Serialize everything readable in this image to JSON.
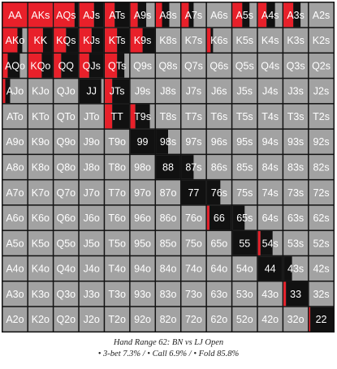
{
  "caption": {
    "title": "Hand Range 62: BN vs LJ Open",
    "stats": "• 3-bet 7.3% / • Call 6.9% / • Fold 85.8%"
  },
  "colors": {
    "three_bet": "#e8202a",
    "call": "#111111",
    "fold": "#a2a2a2",
    "text": "#ffffff"
  },
  "chart_data": {
    "type": "heatmap",
    "title": "Hand Range 62: BN vs LJ Open",
    "legend": [
      "3-bet 7.3%",
      "Call 6.9%",
      "Fold 85.8%"
    ],
    "summary": {
      "three_bet_pct": 7.3,
      "call_pct": 6.9,
      "fold_pct": 85.8
    },
    "ranks": [
      "A",
      "K",
      "Q",
      "J",
      "T",
      "9",
      "8",
      "7",
      "6",
      "5",
      "4",
      "3",
      "2"
    ],
    "labels": [
      [
        "AA",
        "AKs",
        "AQs",
        "AJs",
        "ATs",
        "A9s",
        "A8s",
        "A7s",
        "A6s",
        "A5s",
        "A4s",
        "A3s",
        "A2s"
      ],
      [
        "AKo",
        "KK",
        "KQs",
        "KJs",
        "KTs",
        "K9s",
        "K8s",
        "K7s",
        "K6s",
        "K5s",
        "K4s",
        "K3s",
        "K2s"
      ],
      [
        "AQo",
        "KQo",
        "QQ",
        "QJs",
        "QTs",
        "Q9s",
        "Q8s",
        "Q7s",
        "Q6s",
        "Q5s",
        "Q4s",
        "Q3s",
        "Q2s"
      ],
      [
        "AJo",
        "KJo",
        "QJo",
        "JJ",
        "JTs",
        "J9s",
        "J8s",
        "J7s",
        "J6s",
        "J5s",
        "J4s",
        "J3s",
        "J2s"
      ],
      [
        "ATo",
        "KTo",
        "QTo",
        "JTo",
        "TT",
        "T9s",
        "T8s",
        "T7s",
        "T6s",
        "T5s",
        "T4s",
        "T3s",
        "T2s"
      ],
      [
        "A9o",
        "K9o",
        "Q9o",
        "J9o",
        "T9o",
        "99",
        "98s",
        "97s",
        "96s",
        "95s",
        "94s",
        "93s",
        "92s"
      ],
      [
        "A8o",
        "K8o",
        "Q8o",
        "J8o",
        "T8o",
        "98o",
        "88",
        "87s",
        "86s",
        "85s",
        "84s",
        "83s",
        "82s"
      ],
      [
        "A7o",
        "K7o",
        "Q7o",
        "J7o",
        "T7o",
        "97o",
        "87o",
        "77",
        "76s",
        "75s",
        "74s",
        "73s",
        "72s"
      ],
      [
        "A6o",
        "K6o",
        "Q6o",
        "J6o",
        "T6o",
        "96o",
        "86o",
        "76o",
        "66",
        "65s",
        "64s",
        "63s",
        "62s"
      ],
      [
        "A5o",
        "K5o",
        "Q5o",
        "J5o",
        "T5o",
        "95o",
        "85o",
        "75o",
        "65o",
        "55",
        "54s",
        "53s",
        "52s"
      ],
      [
        "A4o",
        "K4o",
        "Q4o",
        "J4o",
        "T4o",
        "94o",
        "84o",
        "74o",
        "64o",
        "54o",
        "44",
        "43s",
        "42s"
      ],
      [
        "A3o",
        "K3o",
        "Q3o",
        "J3o",
        "T3o",
        "93o",
        "83o",
        "73o",
        "63o",
        "53o",
        "43o",
        "33",
        "32s"
      ],
      [
        "A2o",
        "K2o",
        "Q2o",
        "J2o",
        "T2o",
        "92o",
        "82o",
        "72o",
        "62o",
        "52o",
        "42o",
        "32o",
        "22"
      ]
    ],
    "frequencies": [
      [
        [
          1.0,
          0.0
        ],
        [
          1.0,
          0.0
        ],
        [
          0.85,
          0.15
        ],
        [
          0.6,
          0.4
        ],
        [
          0.4,
          0.6
        ],
        [
          0.3,
          0.35
        ],
        [
          0.25,
          0.3
        ],
        [
          0.3,
          0.2
        ],
        [
          0.0,
          0.0
        ],
        [
          0.4,
          0.3
        ],
        [
          0.35,
          0.35
        ],
        [
          0.4,
          0.3
        ],
        [
          0.0,
          0.0
        ]
      ],
      [
        [
          0.6,
          0.2
        ],
        [
          0.6,
          0.4
        ],
        [
          0.5,
          0.5
        ],
        [
          0.5,
          0.5
        ],
        [
          0.5,
          0.5
        ],
        [
          0.5,
          0.5
        ],
        [
          0.0,
          0.0
        ],
        [
          0.0,
          0.0
        ],
        [
          0.15,
          0.1
        ],
        [
          0.0,
          0.0
        ],
        [
          0.0,
          0.0
        ],
        [
          0.0,
          0.0
        ],
        [
          0.0,
          0.0
        ]
      ],
      [
        [
          0.2,
          0.5
        ],
        [
          0.55,
          0.45
        ],
        [
          0.3,
          0.7
        ],
        [
          0.4,
          0.6
        ],
        [
          0.5,
          0.3
        ],
        [
          0.0,
          0.0
        ],
        [
          0.0,
          0.0
        ],
        [
          0.0,
          0.0
        ],
        [
          0.0,
          0.0
        ],
        [
          0.0,
          0.0
        ],
        [
          0.0,
          0.0
        ],
        [
          0.0,
          0.0
        ],
        [
          0.0,
          0.0
        ]
      ],
      [
        [
          0.1,
          0.2
        ],
        [
          0.0,
          0.0
        ],
        [
          0.0,
          0.0
        ],
        [
          0.0,
          0.9
        ],
        [
          0.3,
          0.7
        ],
        [
          0.0,
          0.0
        ],
        [
          0.0,
          0.0
        ],
        [
          0.0,
          0.0
        ],
        [
          0.0,
          0.0
        ],
        [
          0.0,
          0.0
        ],
        [
          0.0,
          0.0
        ],
        [
          0.0,
          0.0
        ],
        [
          0.0,
          0.0
        ]
      ],
      [
        [
          0.0,
          0.0
        ],
        [
          0.0,
          0.0
        ],
        [
          0.0,
          0.0
        ],
        [
          0.0,
          0.0
        ],
        [
          0.3,
          0.7
        ],
        [
          0.2,
          0.6
        ],
        [
          0.0,
          0.0
        ],
        [
          0.0,
          0.0
        ],
        [
          0.0,
          0.0
        ],
        [
          0.0,
          0.0
        ],
        [
          0.0,
          0.0
        ],
        [
          0.0,
          0.0
        ],
        [
          0.0,
          0.0
        ]
      ],
      [
        [
          0.0,
          0.0
        ],
        [
          0.0,
          0.0
        ],
        [
          0.0,
          0.0
        ],
        [
          0.0,
          0.0
        ],
        [
          0.0,
          0.0
        ],
        [
          0.0,
          1.0
        ],
        [
          0.0,
          0.5
        ],
        [
          0.0,
          0.0
        ],
        [
          0.0,
          0.0
        ],
        [
          0.0,
          0.0
        ],
        [
          0.0,
          0.0
        ],
        [
          0.0,
          0.0
        ],
        [
          0.0,
          0.0
        ]
      ],
      [
        [
          0.0,
          0.0
        ],
        [
          0.0,
          0.0
        ],
        [
          0.0,
          0.0
        ],
        [
          0.0,
          0.0
        ],
        [
          0.0,
          0.0
        ],
        [
          0.0,
          0.0
        ],
        [
          0.0,
          1.0
        ],
        [
          0.0,
          0.5
        ],
        [
          0.0,
          0.0
        ],
        [
          0.0,
          0.0
        ],
        [
          0.0,
          0.0
        ],
        [
          0.0,
          0.0
        ],
        [
          0.0,
          0.0
        ]
      ],
      [
        [
          0.0,
          0.0
        ],
        [
          0.0,
          0.0
        ],
        [
          0.0,
          0.0
        ],
        [
          0.0,
          0.0
        ],
        [
          0.0,
          0.0
        ],
        [
          0.0,
          0.0
        ],
        [
          0.0,
          0.0
        ],
        [
          0.0,
          1.0
        ],
        [
          0.0,
          0.55
        ],
        [
          0.0,
          0.0
        ],
        [
          0.0,
          0.0
        ],
        [
          0.0,
          0.0
        ],
        [
          0.0,
          0.0
        ]
      ],
      [
        [
          0.0,
          0.0
        ],
        [
          0.0,
          0.0
        ],
        [
          0.0,
          0.0
        ],
        [
          0.0,
          0.0
        ],
        [
          0.0,
          0.0
        ],
        [
          0.0,
          0.0
        ],
        [
          0.0,
          0.0
        ],
        [
          0.0,
          0.0
        ],
        [
          0.1,
          0.9
        ],
        [
          0.0,
          0.5
        ],
        [
          0.0,
          0.0
        ],
        [
          0.0,
          0.0
        ],
        [
          0.0,
          0.0
        ]
      ],
      [
        [
          0.0,
          0.0
        ],
        [
          0.0,
          0.0
        ],
        [
          0.0,
          0.0
        ],
        [
          0.0,
          0.0
        ],
        [
          0.0,
          0.0
        ],
        [
          0.0,
          0.0
        ],
        [
          0.0,
          0.0
        ],
        [
          0.0,
          0.0
        ],
        [
          0.0,
          0.0
        ],
        [
          0.0,
          1.0
        ],
        [
          0.1,
          0.5
        ],
        [
          0.0,
          0.0
        ],
        [
          0.0,
          0.0
        ]
      ],
      [
        [
          0.0,
          0.0
        ],
        [
          0.0,
          0.0
        ],
        [
          0.0,
          0.0
        ],
        [
          0.0,
          0.0
        ],
        [
          0.0,
          0.0
        ],
        [
          0.0,
          0.0
        ],
        [
          0.0,
          0.0
        ],
        [
          0.0,
          0.0
        ],
        [
          0.0,
          0.0
        ],
        [
          0.0,
          0.0
        ],
        [
          0.0,
          1.0
        ],
        [
          0.0,
          0.35
        ],
        [
          0.0,
          0.0
        ]
      ],
      [
        [
          0.0,
          0.0
        ],
        [
          0.0,
          0.0
        ],
        [
          0.0,
          0.0
        ],
        [
          0.0,
          0.0
        ],
        [
          0.0,
          0.0
        ],
        [
          0.0,
          0.0
        ],
        [
          0.0,
          0.0
        ],
        [
          0.0,
          0.0
        ],
        [
          0.0,
          0.0
        ],
        [
          0.0,
          0.0
        ],
        [
          0.0,
          0.0
        ],
        [
          0.1,
          0.9
        ],
        [
          0.0,
          0.0
        ]
      ],
      [
        [
          0.0,
          0.0
        ],
        [
          0.0,
          0.0
        ],
        [
          0.0,
          0.0
        ],
        [
          0.0,
          0.0
        ],
        [
          0.0,
          0.0
        ],
        [
          0.0,
          0.0
        ],
        [
          0.0,
          0.0
        ],
        [
          0.0,
          0.0
        ],
        [
          0.0,
          0.0
        ],
        [
          0.0,
          0.0
        ],
        [
          0.0,
          0.0
        ],
        [
          0.0,
          0.0
        ],
        [
          0.05,
          0.95
        ]
      ]
    ]
  }
}
